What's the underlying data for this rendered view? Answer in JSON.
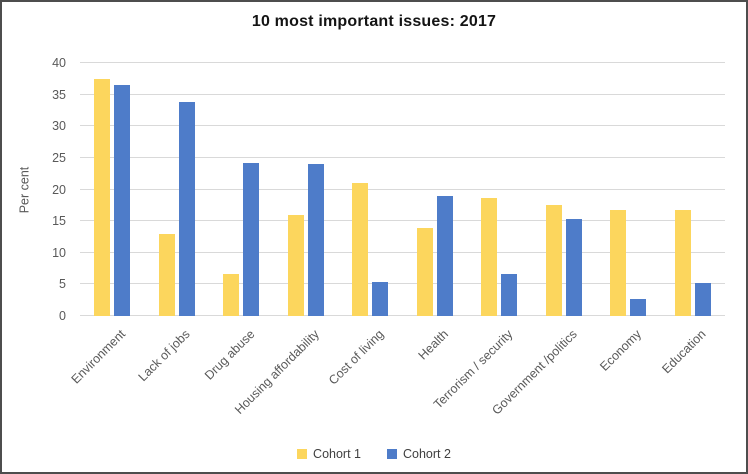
{
  "frame": {
    "border_color": "#4d4d4d",
    "background_color": "#ffffff"
  },
  "chart_data": {
    "type": "bar",
    "title": "10 most important issues: 2017",
    "xlabel": "",
    "ylabel": "Per cent",
    "ylim": [
      0,
      40
    ],
    "yticks": [
      0,
      5,
      10,
      15,
      20,
      25,
      30,
      35,
      40
    ],
    "grid": true,
    "gridline_color": "#d9d9d9",
    "axis_text_color": "#595959",
    "title_color": "#141414",
    "legend_position": "bottom",
    "legend_text_color": "#404040",
    "categories": [
      "Environment",
      "Lack of jobs",
      "Drug abuse",
      "Housing affordability",
      "Cost of living",
      "Health",
      "Terrorism / security",
      "Government /politics",
      "Economy",
      "Education"
    ],
    "series": [
      {
        "name": "Cohort 1",
        "color": "#fcd65d",
        "values": [
          37.5,
          12.9,
          6.6,
          16.0,
          21.1,
          13.9,
          18.7,
          17.6,
          16.7,
          16.7
        ]
      },
      {
        "name": "Cohort 2",
        "color": "#4e7cc9",
        "values": [
          36.6,
          33.9,
          24.2,
          24.1,
          5.3,
          18.9,
          6.6,
          15.4,
          2.7,
          5.2
        ]
      }
    ]
  }
}
